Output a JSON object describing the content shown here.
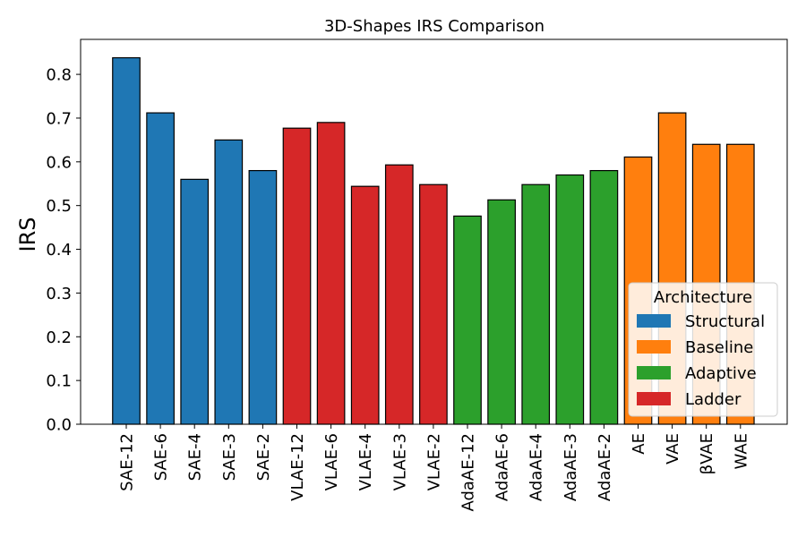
{
  "chart_data": {
    "type": "bar",
    "title": "3D-Shapes IRS Comparison",
    "xlabel": "",
    "ylabel": "IRS",
    "ylim": [
      0,
      0.88
    ],
    "yticks": [
      0.0,
      0.1,
      0.2,
      0.3,
      0.4,
      0.5,
      0.6,
      0.7,
      0.8
    ],
    "yticklabels": [
      "0.0",
      "0.1",
      "0.2",
      "0.3",
      "0.4",
      "0.5",
      "0.6",
      "0.7",
      "0.8"
    ],
    "grid": false,
    "categories": [
      "SAE-12",
      "SAE-6",
      "SAE-4",
      "SAE-3",
      "SAE-2",
      "VLAE-12",
      "VLAE-6",
      "VLAE-4",
      "VLAE-3",
      "VLAE-2",
      "AdaAE-12",
      "AdaAE-6",
      "AdaAE-4",
      "AdaAE-3",
      "AdaAE-2",
      "AE",
      "VAE",
      "βVAE",
      "WAE"
    ],
    "values": [
      0.838,
      0.712,
      0.56,
      0.65,
      0.58,
      0.677,
      0.69,
      0.544,
      0.593,
      0.548,
      0.476,
      0.513,
      0.548,
      0.57,
      0.58,
      0.611,
      0.712,
      0.64,
      0.64
    ],
    "groups": [
      "Structural",
      "Structural",
      "Structural",
      "Structural",
      "Structural",
      "Ladder",
      "Ladder",
      "Ladder",
      "Ladder",
      "Ladder",
      "Adaptive",
      "Adaptive",
      "Adaptive",
      "Adaptive",
      "Adaptive",
      "Baseline",
      "Baseline",
      "Baseline",
      "Baseline"
    ],
    "legend": {
      "title": "Architecture",
      "placement": "lower-right",
      "entries": [
        {
          "label": "Structural",
          "color": "#1f77b4"
        },
        {
          "label": "Baseline",
          "color": "#ff7f0e"
        },
        {
          "label": "Adaptive",
          "color": "#2ca02c"
        },
        {
          "label": "Ladder",
          "color": "#d62728"
        }
      ]
    }
  }
}
